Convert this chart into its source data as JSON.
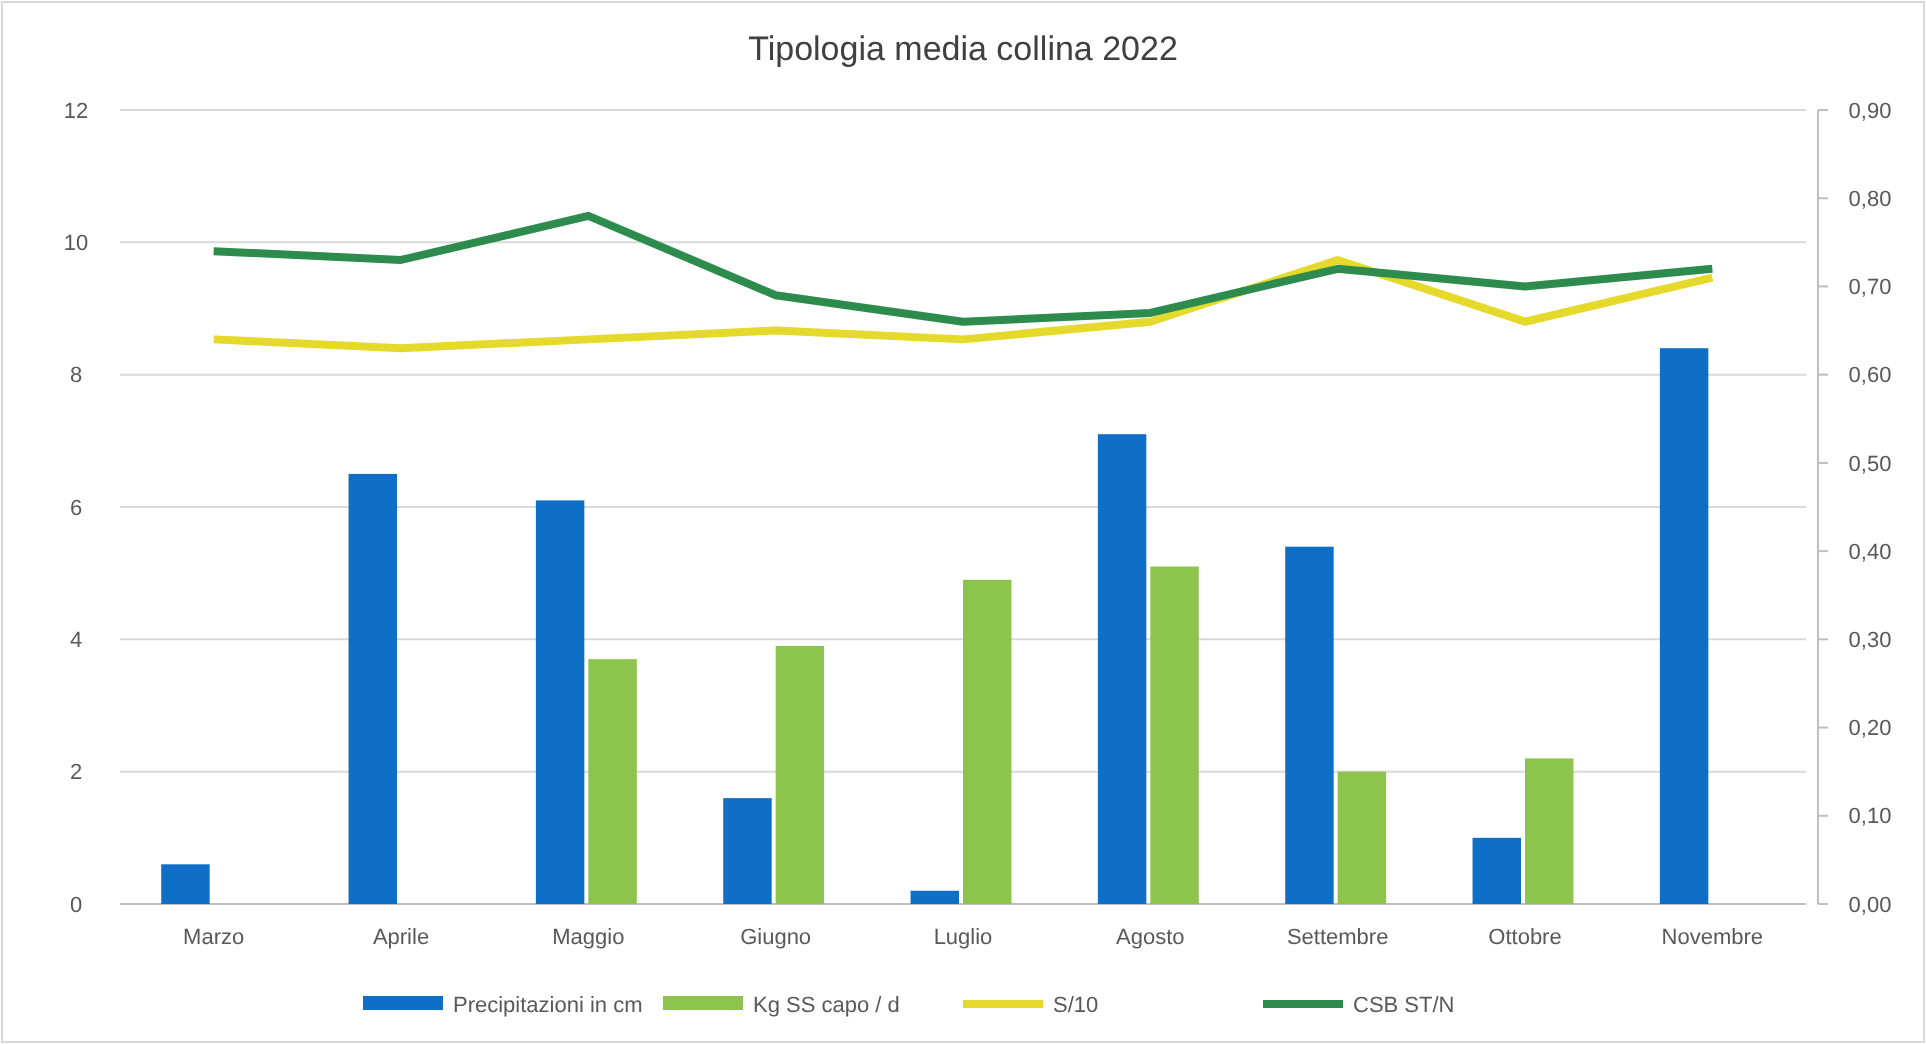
{
  "chart_data": {
    "type": "bar",
    "title": "Tipologia media collina 2022",
    "categories": [
      "Marzo",
      "Aprile",
      "Maggio",
      "Giugno",
      "Luglio",
      "Agosto",
      "Settembre",
      "Ottobre",
      "Novembre"
    ],
    "series": [
      {
        "name": "Precipitazioni in cm",
        "color": "#0f6fc6",
        "values": [
          0.6,
          6.5,
          6.1,
          1.6,
          0.2,
          7.1,
          5.4,
          1.0,
          8.4
        ]
      },
      {
        "name": "Kg SS capo / d",
        "color": "#8dc44e",
        "values": [
          null,
          null,
          3.7,
          3.9,
          4.9,
          5.1,
          2.0,
          2.2,
          null
        ]
      },
      {
        "name": "S/10",
        "type": "line",
        "axis": "y2",
        "color": "#e5d92b",
        "values": [
          0.64,
          0.63,
          0.64,
          0.65,
          0.64,
          0.66,
          0.73,
          0.66,
          0.71
        ]
      },
      {
        "name": "CSB ST/N",
        "type": "line",
        "axis": "y2",
        "color": "#2e8b4e",
        "values": [
          0.74,
          0.73,
          0.78,
          0.69,
          0.66,
          0.67,
          0.72,
          0.7,
          0.72
        ]
      }
    ],
    "ylim": [
      0,
      12
    ],
    "yticks": [
      0,
      2,
      4,
      6,
      8,
      10,
      12
    ],
    "y2lim": [
      0,
      0.9
    ],
    "y2ticks": [
      {
        "value": 0,
        "label": "0,00"
      },
      {
        "value": 0.1,
        "label": "0,10"
      },
      {
        "value": 0.2,
        "label": "0,20"
      },
      {
        "value": 0.3,
        "label": "0,30"
      },
      {
        "value": 0.4,
        "label": "0,40"
      },
      {
        "value": 0.5,
        "label": "0,50"
      },
      {
        "value": 0.6,
        "label": "0,60"
      },
      {
        "value": 0.7,
        "label": "0,70"
      },
      {
        "value": 0.8,
        "label": "0,80"
      },
      {
        "value": 0.9,
        "label": "0,90"
      }
    ],
    "grid": "y",
    "legend": "bottom",
    "line_style": "solid",
    "marker": "none"
  }
}
